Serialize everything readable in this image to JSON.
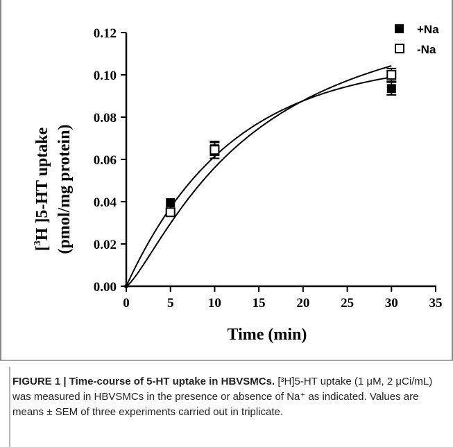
{
  "chart_data": {
    "type": "scatter",
    "xlabel": "Time (min)",
    "ylabel_line1_pre": "[",
    "ylabel_sup": "3",
    "ylabel_line1_post": "H ]5-HT uptake",
    "ylabel_line2": "(pmol/mg protein)",
    "xlim": [
      0,
      35
    ],
    "ylim": [
      0,
      0.12
    ],
    "x_ticks": [
      "0",
      "5",
      "10",
      "15",
      "20",
      "25",
      "30",
      "35"
    ],
    "y_ticks": [
      "0.00",
      "0.02",
      "0.04",
      "0.06",
      "0.08",
      "0.10",
      "0.12"
    ],
    "grid": false,
    "legend_position": "top-right",
    "series": [
      {
        "name": "+Na",
        "marker": "filled-square",
        "x": [
          0,
          5,
          10,
          30
        ],
        "y": [
          0.0,
          0.0395,
          0.065,
          0.0935
        ],
        "err": [
          0,
          0.0,
          0.003,
          0.003
        ],
        "fit": "one-phase"
      },
      {
        "name": "-Na",
        "marker": "open-square",
        "x": [
          0,
          5,
          10,
          30
        ],
        "y": [
          0.0,
          0.035,
          0.0645,
          0.1
        ],
        "err": [
          0,
          0.0,
          0.004,
          0.003
        ],
        "fit": "sigmoidal"
      }
    ]
  },
  "caption": {
    "head": "FIGURE 1 | Time-course of 5-HT uptake in HBVSMCs.",
    "body": " [³H]5-HT uptake (1 μM, 2 μCi/mL) was measured in HBVSMCs in the presence or absence of Na⁺ as indicated. Values are means ± SEM of three experiments carried out in triplicate."
  },
  "colors": {
    "ink": "#000000",
    "caption_text": "#222222",
    "frame": "#888888"
  }
}
